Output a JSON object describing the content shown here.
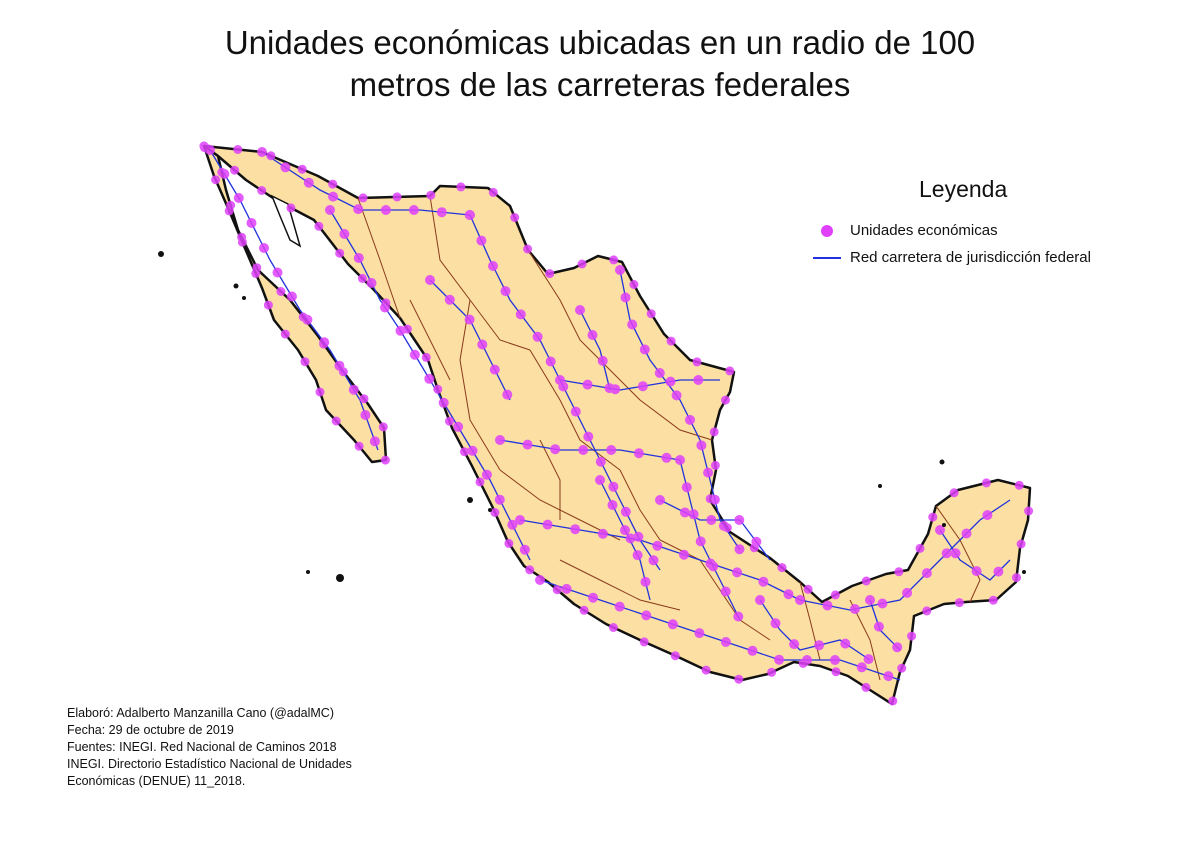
{
  "title": {
    "line1": "Unidades económicas ubicadas en un radio de 100",
    "line2": "metros de las carreteras federales"
  },
  "legend": {
    "title": "Leyenda",
    "items": [
      {
        "label": "Unidades económicas",
        "symbol": "dot",
        "color": "#e040fb"
      },
      {
        "label": "Red carretera de jurisdicción federal",
        "symbol": "line",
        "color": "#2233dd"
      }
    ]
  },
  "credits": {
    "line1": "Elaboró: Adalberto Manzanilla Cano (@adalMC)",
    "line2": "Fecha: 29 de octubre de 2019",
    "line3": "Fuentes: INEGI. Red Nacional de Caminos 2018",
    "line4": "INEGI. Directorio Estadístico Nacional de Unidades",
    "line5": "Económicas (DENUE) 11_2018."
  },
  "colors": {
    "land": "#fbdfa3",
    "border": "#111111",
    "state_borders": "#8b3a1a",
    "roads": "#2233dd",
    "units": "#e040fb"
  }
}
